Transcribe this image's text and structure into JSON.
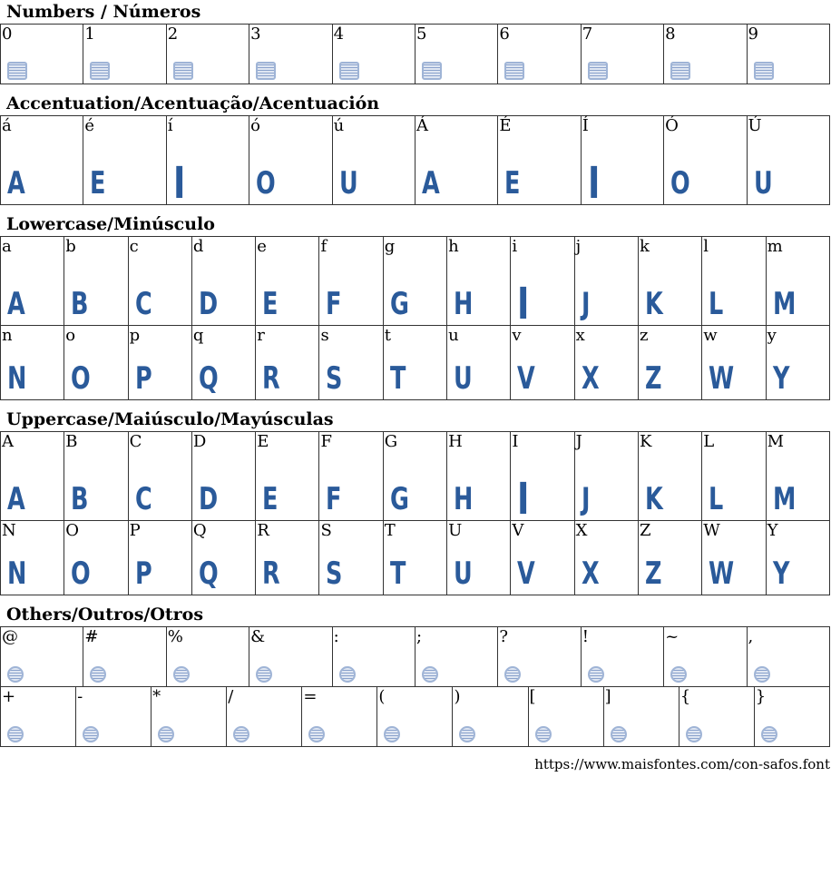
{
  "sections": [
    {
      "title": "Numbers / Números",
      "rows": [
        [
          "0",
          "1",
          "2",
          "3",
          "4",
          "5",
          "6",
          "7",
          "8",
          "9"
        ]
      ],
      "glyph": "placeholder-box",
      "height": [
        66
      ]
    },
    {
      "title": "Accentuation/Acentuação/Acentuación",
      "rows": [
        [
          "á",
          "é",
          "í",
          "ó",
          "ú",
          "Á",
          "É",
          "Í",
          "Ó",
          "Ú"
        ]
      ],
      "glyph": "font",
      "height": [
        98
      ]
    },
    {
      "title": "Lowercase/Minúsculo",
      "rows": [
        [
          "a",
          "b",
          "c",
          "d",
          "e",
          "f",
          "g",
          "h",
          "i",
          "j",
          "k",
          "l",
          "m"
        ],
        [
          "n",
          "o",
          "p",
          "q",
          "r",
          "s",
          "t",
          "u",
          "v",
          "x",
          "z",
          "w",
          "y"
        ]
      ],
      "glyph": "font",
      "height": [
        98,
        82
      ]
    },
    {
      "title": "Uppercase/Maiúsculo/Mayúsculas",
      "rows": [
        [
          "A",
          "B",
          "C",
          "D",
          "E",
          "F",
          "G",
          "H",
          "I",
          "J",
          "K",
          "L",
          "M"
        ],
        [
          "N",
          "O",
          "P",
          "Q",
          "R",
          "S",
          "T",
          "U",
          "V",
          "X",
          "Z",
          "W",
          "Y"
        ]
      ],
      "glyph": "font",
      "height": [
        98,
        82
      ]
    },
    {
      "title": "Others/Outros/Otros",
      "rows": [
        [
          "@",
          "#",
          "%",
          "&",
          ":",
          ";",
          "?",
          "!",
          "~",
          ","
        ],
        [
          "+",
          "-",
          "*",
          "/",
          "=",
          "(",
          ")",
          "[",
          "]",
          "{",
          "}"
        ]
      ],
      "glyph": "placeholder-circle",
      "height": [
        66,
        66
      ]
    }
  ],
  "footer": {
    "url": "https://www.maisfontes.com/con-safos.font"
  },
  "colors": {
    "glyph": "#2a5a9a"
  }
}
